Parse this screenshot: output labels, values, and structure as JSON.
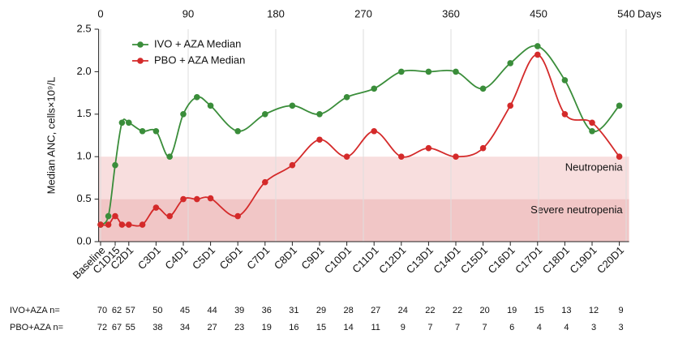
{
  "chart_data": {
    "type": "line",
    "ylabel": "Median ANC, cells×10⁹/L",
    "xlabel": "Days",
    "xlim": [
      -2,
      543
    ],
    "xticks": [
      0,
      90,
      180,
      270,
      360,
      450,
      540
    ],
    "ylim": [
      0,
      2.5
    ],
    "yticks": [
      {
        "value": 0,
        "label": "0.0"
      },
      {
        "value": 0.5,
        "label": "0.5"
      },
      {
        "value": 1,
        "label": "1.0"
      },
      {
        "value": 1.5,
        "label": "1.5"
      },
      {
        "value": 2,
        "label": "2.0"
      },
      {
        "value": 2.5,
        "label": "2.5"
      }
    ],
    "grid": true,
    "legend": "top-left",
    "x": [
      0,
      8,
      15,
      22,
      29,
      43,
      57,
      71,
      85,
      99,
      113,
      141,
      169,
      197,
      225,
      253,
      281,
      309,
      337,
      365,
      393,
      421,
      449,
      477,
      505,
      533
    ],
    "series": [
      {
        "name": "IVO + AZA Median",
        "color": "#3a8d3a",
        "values": [
          0.2,
          0.3,
          0.9,
          1.4,
          1.4,
          1.3,
          1.3,
          1.0,
          1.5,
          1.7,
          1.6,
          1.3,
          1.5,
          1.6,
          1.5,
          1.7,
          1.8,
          2.0,
          2.0,
          2.0,
          1.8,
          2.1,
          2.3,
          1.9,
          1.3,
          1.6
        ]
      },
      {
        "name": "PBO + AZA Median",
        "color": "#d42a2a",
        "values": [
          0.2,
          0.2,
          0.3,
          0.2,
          0.2,
          0.2,
          0.4,
          0.3,
          0.5,
          0.5,
          0.51,
          0.3,
          0.7,
          0.9,
          1.2,
          1.0,
          1.3,
          1.0,
          1.1,
          1.0,
          1.1,
          1.6,
          2.2,
          1.5,
          1.4,
          1.0
        ]
      }
    ],
    "bands": [
      {
        "label": "Neutropenia",
        "from": 0.5,
        "to": 1.0,
        "color": "#f8dede"
      },
      {
        "label": "Severe neutropenia",
        "from": 0,
        "to": 0.5,
        "color": "#f1c6c6"
      }
    ],
    "visit_ticks": [
      {
        "value": 0,
        "label": "Baseline"
      },
      {
        "value": 15,
        "label": "C1D15"
      },
      {
        "value": 29,
        "label": "C2D1"
      },
      {
        "value": 57,
        "label": "C3D1"
      },
      {
        "value": 85,
        "label": "C4D1"
      },
      {
        "value": 113,
        "label": "C5D1"
      },
      {
        "value": 141,
        "label": "C6D1"
      },
      {
        "value": 169,
        "label": "C7D1"
      },
      {
        "value": 197,
        "label": "C8D1"
      },
      {
        "value": 225,
        "label": "C9D1"
      },
      {
        "value": 253,
        "label": "C10D1"
      },
      {
        "value": 281,
        "label": "C11D1"
      },
      {
        "value": 309,
        "label": "C12D1"
      },
      {
        "value": 337,
        "label": "C13D1"
      },
      {
        "value": 365,
        "label": "C14D1"
      },
      {
        "value": 393,
        "label": "C15D1"
      },
      {
        "value": 421,
        "label": "C16D1"
      },
      {
        "value": 449,
        "label": "C17D1"
      },
      {
        "value": 477,
        "label": "C18D1"
      },
      {
        "value": 505,
        "label": "C19D1"
      },
      {
        "value": 533,
        "label": "C20D1"
      }
    ],
    "at_risk": [
      {
        "label": "IVO+AZA n=",
        "values": [
          70,
          62,
          57,
          50,
          45,
          44,
          39,
          36,
          31,
          29,
          28,
          27,
          24,
          22,
          22,
          20,
          19,
          15,
          13,
          12,
          9
        ]
      },
      {
        "label": "PBO+AZA n=",
        "values": [
          72,
          67,
          55,
          38,
          34,
          27,
          23,
          19,
          16,
          15,
          14,
          11,
          9,
          7,
          7,
          7,
          6,
          4,
          4,
          3,
          3
        ]
      }
    ]
  }
}
